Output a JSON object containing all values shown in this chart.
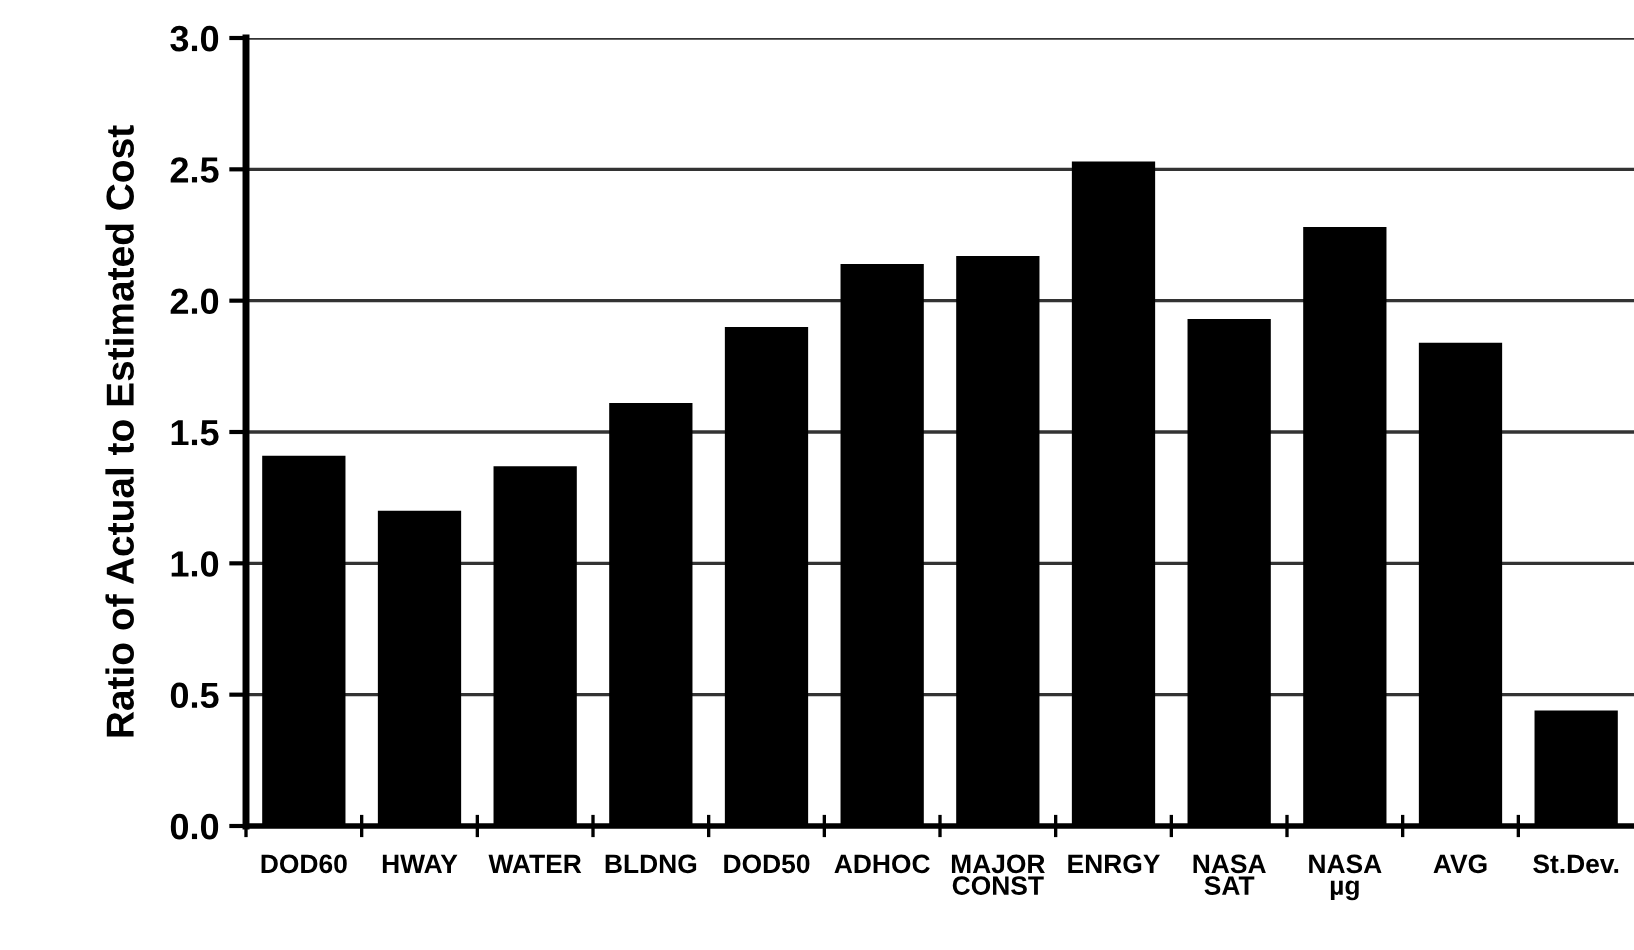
{
  "chart_data": {
    "type": "bar",
    "ylabel": "Ratio of Actual to Estimated Cost",
    "categories": [
      "DOD60",
      "HWAY",
      "WATER",
      "BLDNG",
      "DOD50",
      "ADHOC",
      "MAJOR\nCONST",
      "ENRGY",
      "NASA\nSAT",
      "NASA\nµg",
      "AVG",
      "St.Dev."
    ],
    "values": [
      1.41,
      1.2,
      1.37,
      1.61,
      1.9,
      2.14,
      2.17,
      2.53,
      1.93,
      2.28,
      1.84,
      0.44
    ],
    "color": "#000000",
    "ylim": [
      0,
      3.0
    ],
    "yticks": [
      {
        "value": 0,
        "label": "0.0"
      },
      {
        "value": 0.5,
        "label": "0.5"
      },
      {
        "value": 1.0,
        "label": "1.0"
      },
      {
        "value": 1.5,
        "label": "1.5"
      },
      {
        "value": 2.0,
        "label": "2.0"
      },
      {
        "value": 2.5,
        "label": "2.5"
      },
      {
        "value": 3.0,
        "label": "3.0"
      }
    ],
    "grid": "y"
  }
}
